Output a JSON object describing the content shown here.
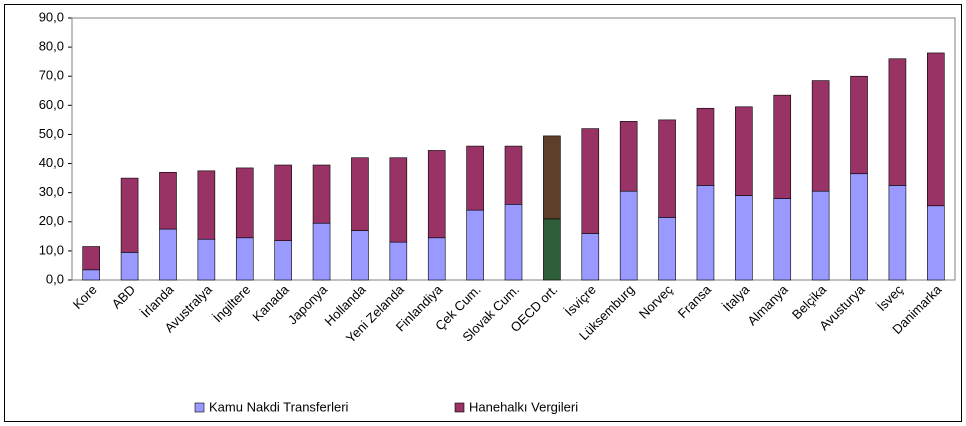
{
  "chart_data": {
    "type": "stacked_bar",
    "categories": [
      "Kore",
      "ABD",
      "İrlanda",
      "Avustralya",
      "İngiltere",
      "Kanada",
      "Japonya",
      "Hollanda",
      "Yeni Zelanda",
      "Finlandiya",
      "Çek Cum.",
      "Slovak Cum.",
      "OECD ort.",
      "İsviçre",
      "Lüksemburg",
      "Norveç",
      "Fransa",
      "İtalya",
      "Almanya",
      "Belçika",
      "Avusturya",
      "İsveç",
      "Danimarka"
    ],
    "series": [
      {
        "name": "Kamu Nakdi Transferleri",
        "color": "#9999ff",
        "colors": [
          "#9999ff",
          "#9999ff",
          "#9999ff",
          "#9999ff",
          "#9999ff",
          "#9999ff",
          "#9999ff",
          "#9999ff",
          "#9999ff",
          "#9999ff",
          "#9999ff",
          "#9999ff",
          "#2e5e3a",
          "#9999ff",
          "#9999ff",
          "#9999ff",
          "#9999ff",
          "#9999ff",
          "#9999ff",
          "#9999ff",
          "#9999ff",
          "#9999ff",
          "#9999ff"
        ],
        "values": [
          3.5,
          9.5,
          17.5,
          14,
          14.5,
          13.5,
          19.5,
          17,
          13,
          14.5,
          24,
          26,
          21,
          16,
          30.5,
          21.5,
          32.5,
          29,
          28,
          30.5,
          36.5,
          32.5,
          25.5
        ]
      },
      {
        "name": "Hanehalkı Vergileri",
        "color": "#993366",
        "colors": [
          "#993366",
          "#993366",
          "#993366",
          "#993366",
          "#993366",
          "#993366",
          "#993366",
          "#993366",
          "#993366",
          "#993366",
          "#993366",
          "#993366",
          "#5e3f2a",
          "#993366",
          "#993366",
          "#993366",
          "#993366",
          "#993366",
          "#993366",
          "#993366",
          "#993366",
          "#993366",
          "#993366"
        ],
        "values": [
          8,
          25.5,
          19.5,
          23.5,
          24,
          26,
          20,
          25,
          29,
          30,
          22,
          20,
          28.5,
          36,
          24,
          33.5,
          26.5,
          30.5,
          35.5,
          38,
          33.5,
          43.5,
          52.5
        ]
      }
    ],
    "ylim": [
      0,
      90
    ],
    "yticks": [
      {
        "value": 0,
        "label": "0,0"
      },
      {
        "value": 10,
        "label": "10,0"
      },
      {
        "value": 20,
        "label": "20,0"
      },
      {
        "value": 30,
        "label": "30,0"
      },
      {
        "value": 40,
        "label": "40,0"
      },
      {
        "value": 50,
        "label": "50,0"
      },
      {
        "value": 60,
        "label": "60,0"
      },
      {
        "value": 70,
        "label": "70,0"
      },
      {
        "value": 80,
        "label": "80,0"
      },
      {
        "value": 90,
        "label": "90,0"
      }
    ],
    "grid": false,
    "legend": "bottom"
  }
}
